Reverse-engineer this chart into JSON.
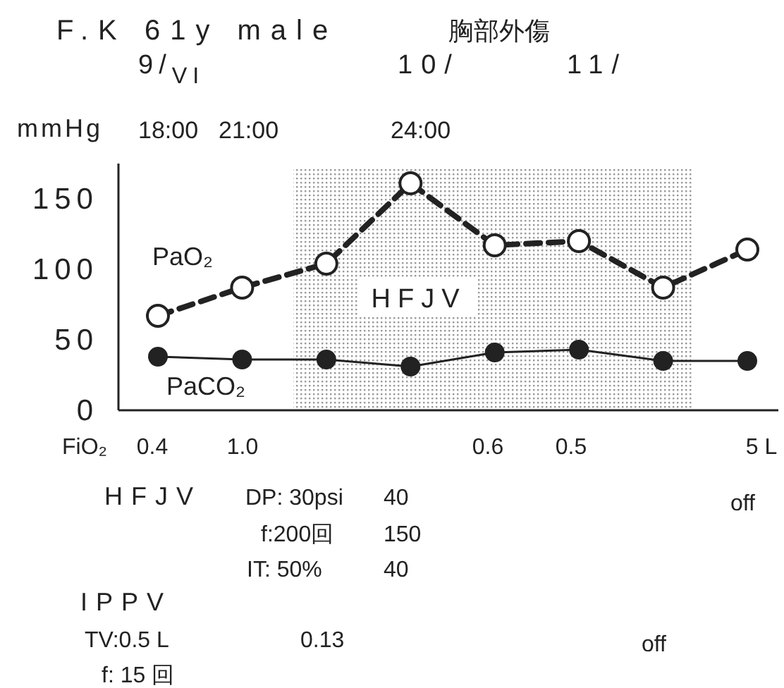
{
  "chart_data": {
    "type": "line",
    "title": "F.K 61y male",
    "subtitle": "胸部外傷",
    "xlabel": "FiO₂",
    "ylabel": "mmHg",
    "categories": [
      "0.4",
      "1.0",
      null,
      null,
      "0.6",
      "0.5",
      null,
      "5 L"
    ],
    "series": [
      {
        "name": "PaO₂",
        "color": "#222222",
        "line_style": "dashed",
        "marker": "circle",
        "values": [
          67,
          87,
          104,
          161,
          117,
          120,
          87,
          114
        ]
      },
      {
        "name": "PaCO₂",
        "color": "#222222",
        "line_style": "solid",
        "marker": "circle",
        "values": [
          38,
          36,
          36,
          31,
          41,
          43,
          35,
          35
        ]
      }
    ],
    "ylim": [
      0,
      175
    ],
    "yticks": [
      0,
      50,
      100,
      150
    ],
    "grid": false,
    "legend": false,
    "annotations": [
      "HFJV",
      "9/$_{VI}$",
      "10/",
      "11/",
      "18:00",
      "21:00",
      "24:00",
      "HFJV",
      "DP: 30psi",
      "40",
      "f:200回",
      "150",
      "IT: 50%",
      "40",
      "off",
      "IPPV",
      "TV:0.5 L",
      "0.13",
      "off",
      "f: 15 回"
    ]
  }
}
